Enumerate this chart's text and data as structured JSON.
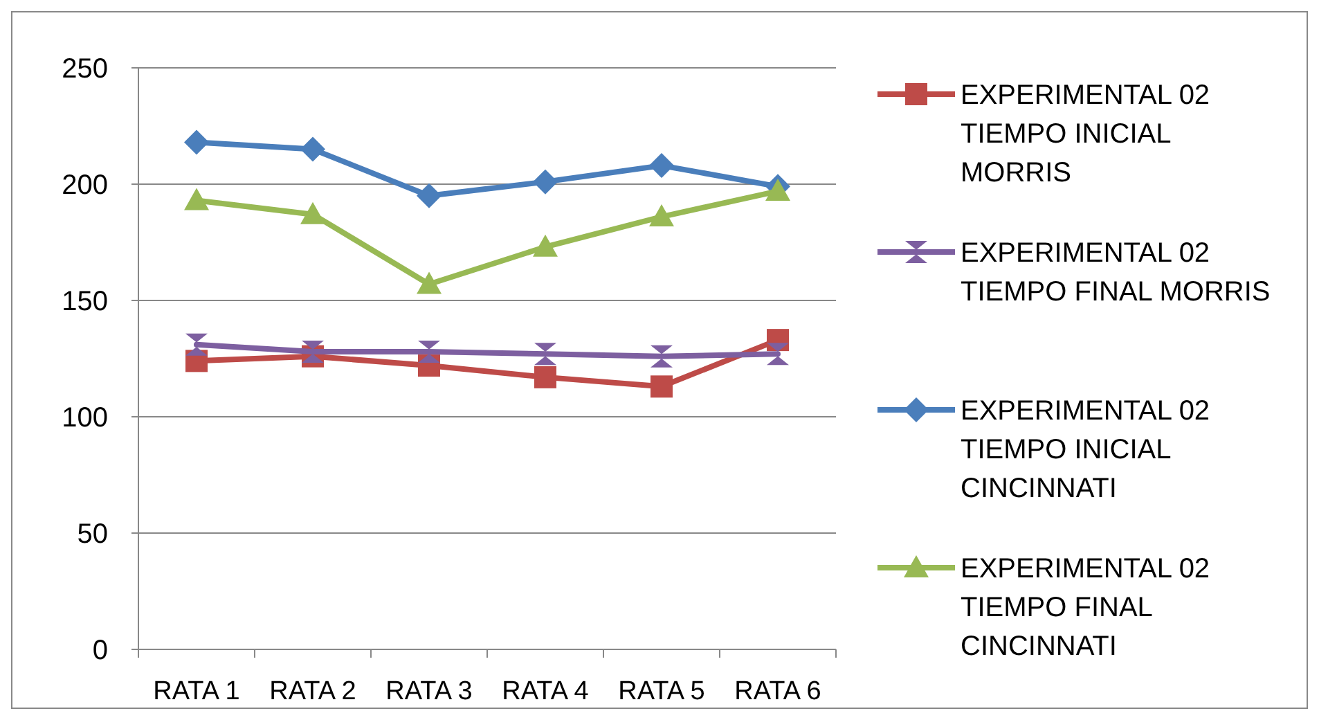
{
  "chart_data": {
    "type": "line",
    "categories": [
      "RATA 1",
      "RATA 2",
      "RATA 3",
      "RATA 4",
      "RATA 5",
      "RATA 6"
    ],
    "series": [
      {
        "name": "EXPERIMENTAL 02 TIEMPO INICIAL MORRIS",
        "color": "#be4b48",
        "marker": "square",
        "values": [
          124,
          126,
          122,
          117,
          113,
          133
        ]
      },
      {
        "name": "EXPERIMENTAL 02 TIEMPO FINAL MORRIS",
        "color": "#7d5fa0",
        "marker": "cross",
        "values": [
          131,
          128,
          128,
          127,
          126,
          127
        ]
      },
      {
        "name": "EXPERIMENTAL 02 TIEMPO INICIAL CINCINNATI",
        "color": "#4a7ebb",
        "marker": "diamond",
        "values": [
          218,
          215,
          195,
          201,
          208,
          199
        ]
      },
      {
        "name": "EXPERIMENTAL 02 TIEMPO FINAL CINCINNATI",
        "color": "#98b954",
        "marker": "triangle",
        "values": [
          193,
          187,
          157,
          173,
          186,
          197
        ]
      }
    ],
    "ylim": [
      0,
      250
    ],
    "yticks": [
      0,
      50,
      100,
      150,
      200,
      250
    ],
    "grid": "y",
    "legend": "right",
    "line_style": "solid"
  }
}
